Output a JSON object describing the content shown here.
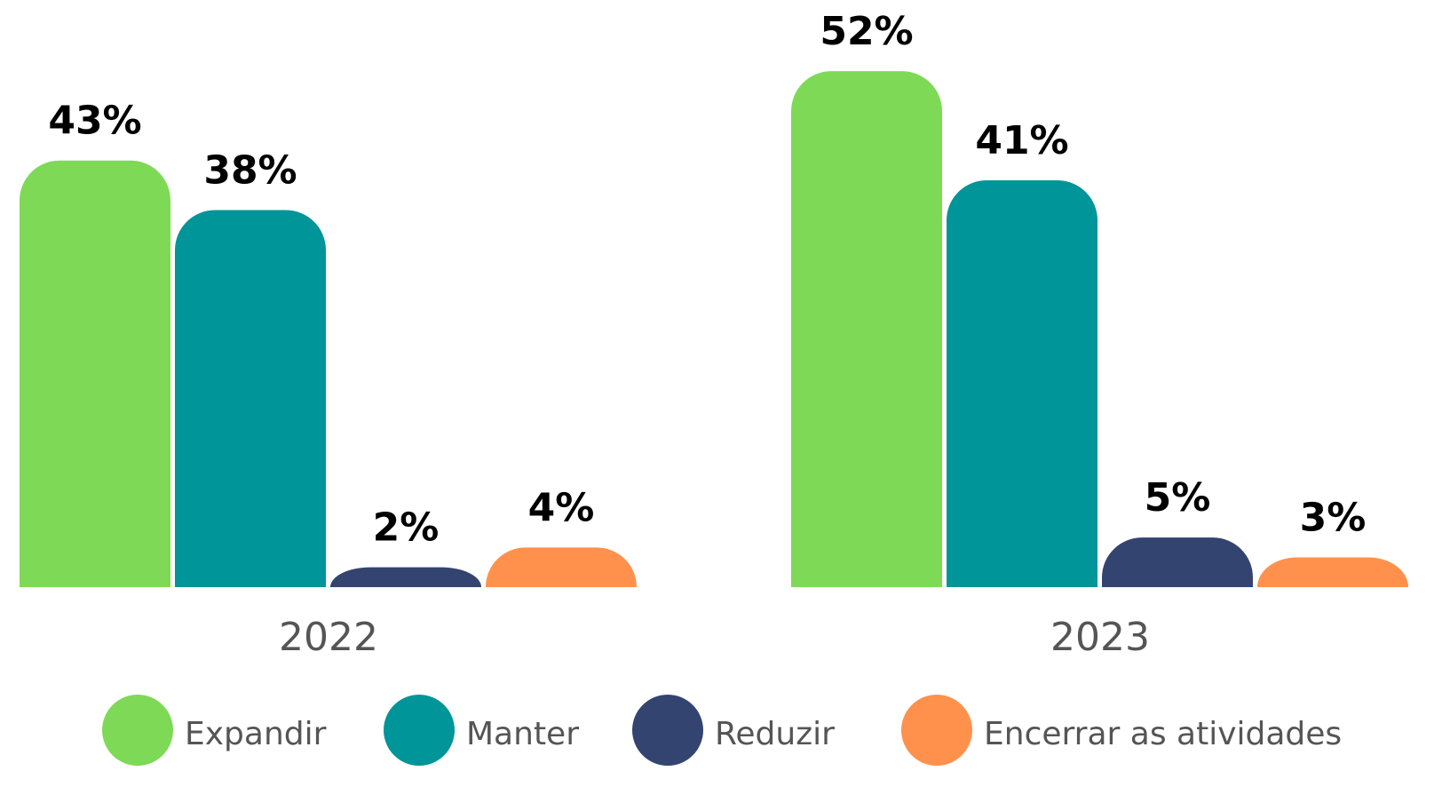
{
  "chart_data": {
    "type": "bar",
    "categories": [
      "2022",
      "2023"
    ],
    "series": [
      {
        "name": "Expandir",
        "color": "#7ed957",
        "values": [
          43,
          52
        ],
        "value_labels": [
          "43%",
          "52%"
        ]
      },
      {
        "name": "Manter",
        "color": "#009598",
        "values": [
          38,
          41
        ],
        "value_labels": [
          "38%",
          "41%"
        ]
      },
      {
        "name": "Reduzir",
        "color": "#334470",
        "values": [
          2,
          5
        ],
        "value_labels": [
          "2%",
          "5%"
        ]
      },
      {
        "name": "Encerrar as atividades",
        "color": "#ff914d",
        "values": [
          4,
          3
        ],
        "value_labels": [
          "4%",
          "3%"
        ]
      }
    ]
  }
}
